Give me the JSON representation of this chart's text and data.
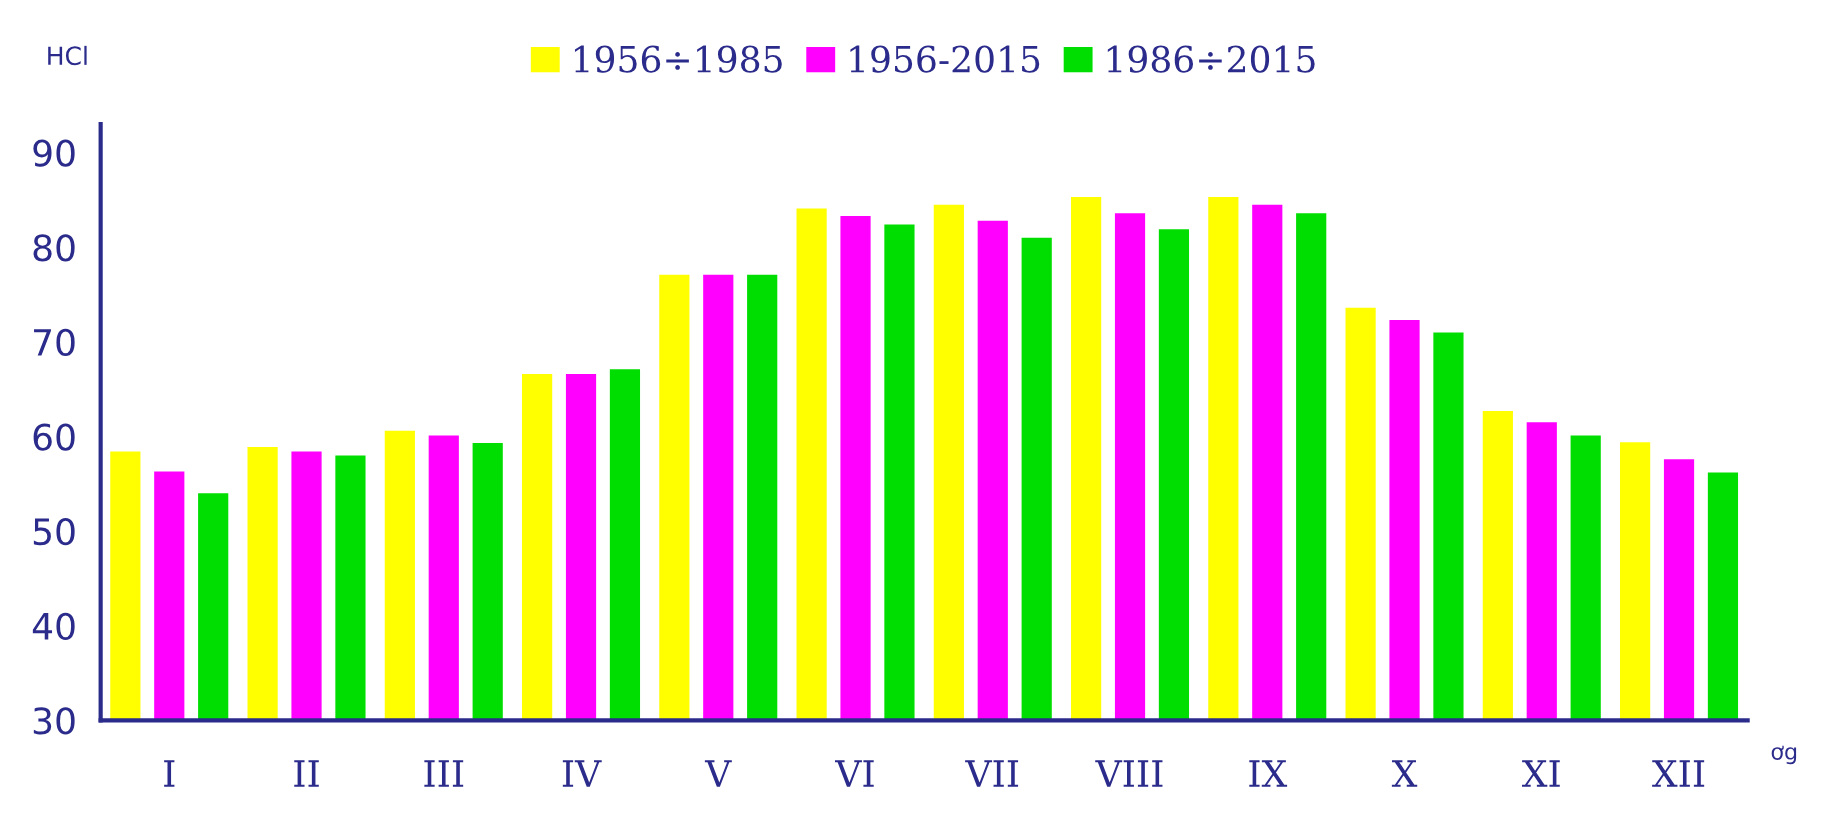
{
  "chart_data": {
    "type": "bar",
    "ylabel": "HCl",
    "xlabel": "ơg",
    "categories": [
      "I",
      "II",
      "III",
      "IV",
      "V",
      "VI",
      "VII",
      "VIII",
      "IX",
      "X",
      "XI",
      "XII"
    ],
    "series": [
      {
        "name": "1956÷1985",
        "color": "#ffff00",
        "values": [
          58.4,
          58.9,
          60.6,
          66.6,
          77.1,
          84.1,
          84.5,
          85.3,
          85.3,
          73.6,
          62.7,
          59.4
        ]
      },
      {
        "name": "1956-2015",
        "color": "#ff00ff",
        "values": [
          56.3,
          58.4,
          60.1,
          66.6,
          77.1,
          83.3,
          82.8,
          83.6,
          84.5,
          72.3,
          61.5,
          57.6
        ]
      },
      {
        "name": "1986÷2015",
        "color": "#00dd00",
        "values": [
          54.0,
          58.0,
          59.3,
          67.1,
          77.1,
          82.4,
          81.0,
          81.9,
          83.6,
          71.0,
          60.1,
          56.2
        ]
      }
    ],
    "ylim": [
      30,
      93
    ],
    "yticks": [
      30,
      40,
      50,
      60,
      70,
      80,
      90
    ],
    "grid": false,
    "legend": "top"
  }
}
